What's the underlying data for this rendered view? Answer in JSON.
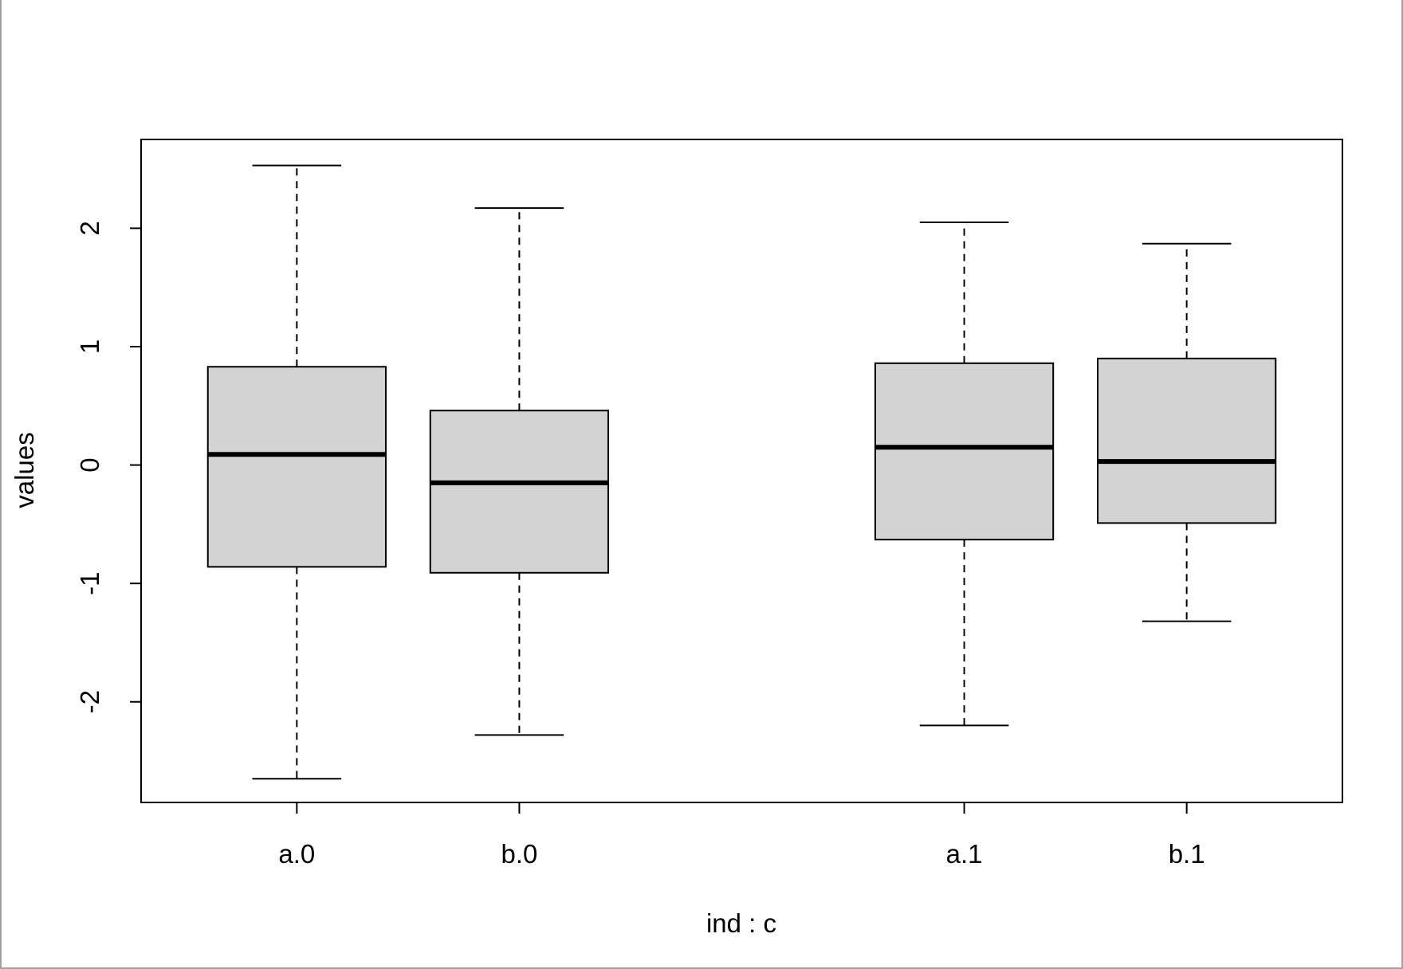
{
  "chart_data": {
    "type": "boxplot",
    "title": "",
    "xlabel": "ind : c",
    "ylabel": "values",
    "ylim": [
      -2.85,
      2.75
    ],
    "yticks": [
      -2,
      -1,
      0,
      1,
      2
    ],
    "grid": false,
    "legend": "none",
    "box_color": "#d3d3d3",
    "categories": [
      "a.0",
      "b.0",
      "a.1",
      "b.1"
    ],
    "at": [
      1,
      2,
      4,
      5
    ],
    "xlim": [
      0.3,
      5.7
    ],
    "boxes": [
      {
        "label": "a.0",
        "whisker_low": -2.65,
        "q1": -0.86,
        "median": 0.09,
        "q3": 0.83,
        "whisker_high": 2.53
      },
      {
        "label": "b.0",
        "whisker_low": -2.28,
        "q1": -0.91,
        "median": -0.15,
        "q3": 0.46,
        "whisker_high": 2.17
      },
      {
        "label": "a.1",
        "whisker_low": -2.2,
        "q1": -0.63,
        "median": 0.15,
        "q3": 0.86,
        "whisker_high": 2.05
      },
      {
        "label": "b.1",
        "whisker_low": -1.32,
        "q1": -0.49,
        "median": 0.03,
        "q3": 0.9,
        "whisker_high": 1.87
      }
    ]
  }
}
